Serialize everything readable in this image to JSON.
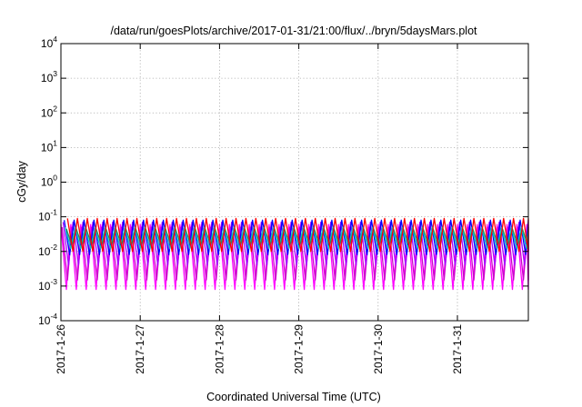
{
  "chart_data": {
    "type": "line",
    "title": "/data/run/goesPlots/archive/2017-01-31/21:00/flux/../bryn/5daysMars.plot",
    "xlabel": "Coordinated Universal Time (UTC)",
    "ylabel": "cGy/day",
    "yscale": "log",
    "ylim": [
      0.0001,
      10000
    ],
    "xlim": [
      "2017-01-26 00:00",
      "2017-01-31 21:00"
    ],
    "grid": true,
    "legend": "none",
    "y_ticks": [
      {
        "base": "10",
        "exp": "-4"
      },
      {
        "base": "10",
        "exp": "-3"
      },
      {
        "base": "10",
        "exp": "-2"
      },
      {
        "base": "10",
        "exp": "-1"
      },
      {
        "base": "10",
        "exp": "0"
      },
      {
        "base": "10",
        "exp": "1"
      },
      {
        "base": "10",
        "exp": "2"
      },
      {
        "base": "10",
        "exp": "3"
      },
      {
        "base": "10",
        "exp": "4"
      }
    ],
    "x_ticks": [
      "2017-1-26",
      "2017-1-27",
      "2017-1-28",
      "2017-1-29",
      "2017-1-30",
      "2017-1-31"
    ],
    "pattern": {
      "description": "sawtooth oscillation with period ~3 hours",
      "period_hours": 3
    },
    "series": [
      {
        "color": "#ff00ff",
        "peak": 0.06,
        "trough": 0.0008
      },
      {
        "color": "#cc00cc",
        "peak": 0.05,
        "trough": 0.0015
      },
      {
        "color": "#aa00ff",
        "peak": 0.07,
        "trough": 0.004
      },
      {
        "color": "#0000ff",
        "peak": 0.08,
        "trough": 0.008
      },
      {
        "color": "#00cccc",
        "peak": 0.05,
        "trough": 0.012
      },
      {
        "color": "#2e8b57",
        "peak": 0.045,
        "trough": 0.015
      },
      {
        "color": "#ff0000",
        "peak": 0.09,
        "trough": 0.01
      }
    ]
  }
}
